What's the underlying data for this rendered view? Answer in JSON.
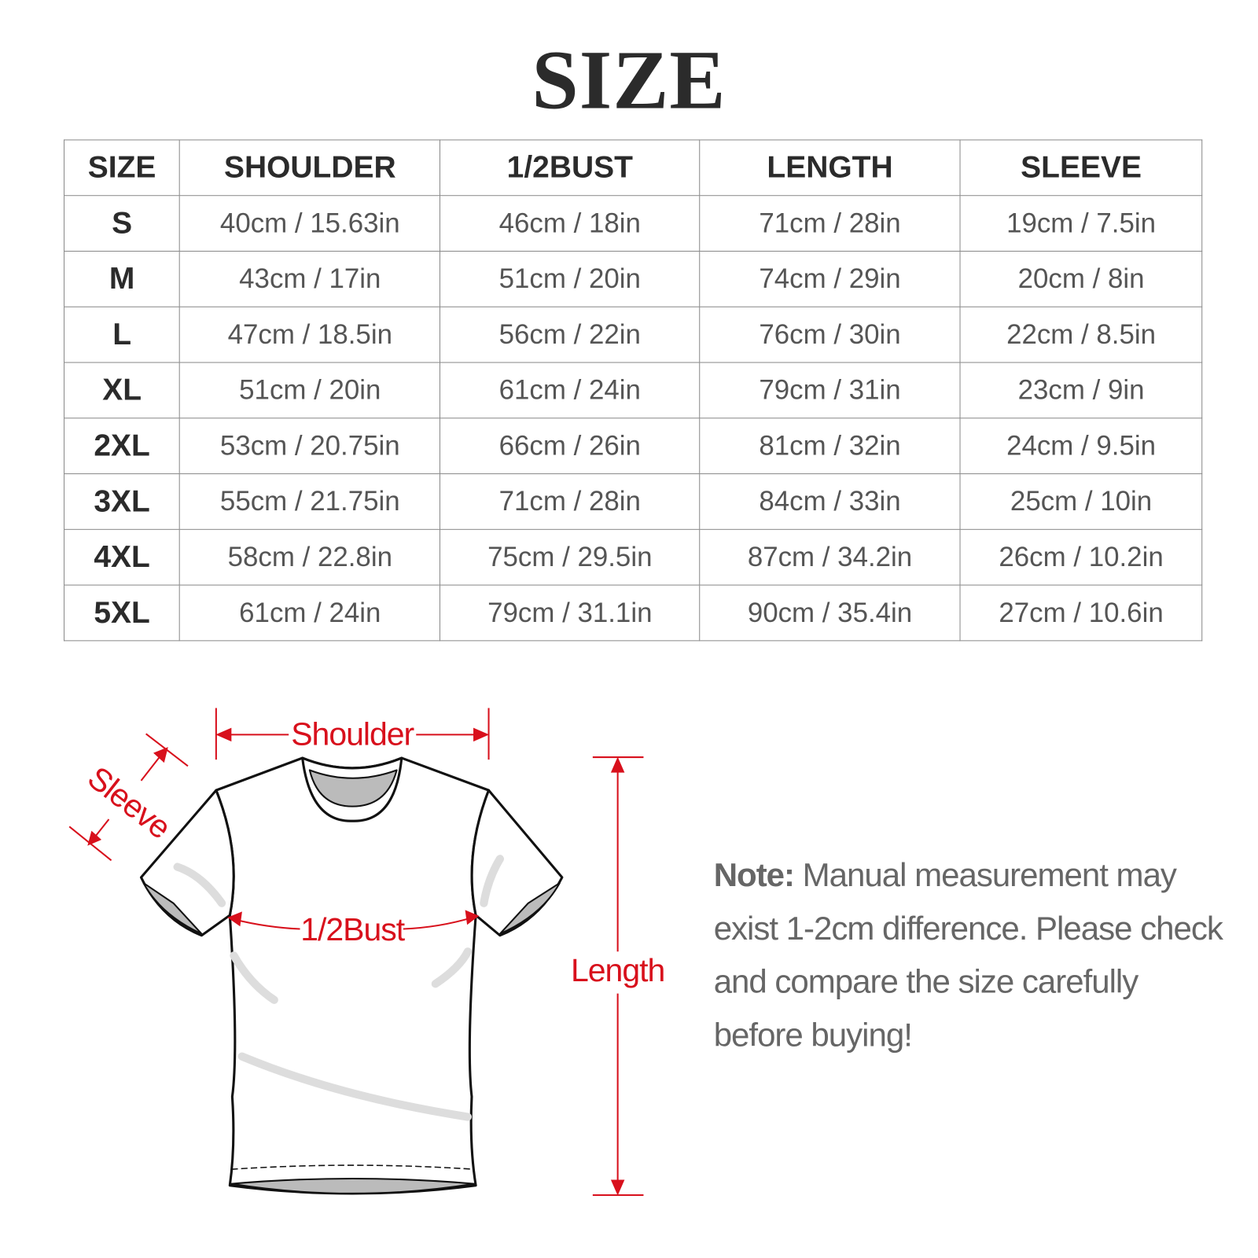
{
  "title": "SIZE",
  "table": {
    "headers": [
      "SIZE",
      "SHOULDER",
      "1/2BUST",
      "LENGTH",
      "SLEEVE"
    ],
    "rows": [
      [
        "S",
        "40cm / 15.63in",
        "46cm / 18in",
        "71cm / 28in",
        "19cm / 7.5in"
      ],
      [
        "M",
        "43cm / 17in",
        "51cm / 20in",
        "74cm / 29in",
        "20cm / 8in"
      ],
      [
        "L",
        "47cm / 18.5in",
        "56cm / 22in",
        "76cm / 30in",
        "22cm / 8.5in"
      ],
      [
        "XL",
        "51cm / 20in",
        "61cm / 24in",
        "79cm / 31in",
        "23cm / 9in"
      ],
      [
        "2XL",
        "53cm / 20.75in",
        "66cm / 26in",
        "81cm / 32in",
        "24cm / 9.5in"
      ],
      [
        "3XL",
        "55cm / 21.75in",
        "71cm / 28in",
        "84cm / 33in",
        "25cm / 10in"
      ],
      [
        "4XL",
        "58cm / 22.8in",
        "75cm / 29.5in",
        "87cm / 34.2in",
        "26cm / 10.2in"
      ],
      [
        "5XL",
        "61cm / 24in",
        "79cm / 31.1in",
        "90cm / 35.4in",
        "27cm / 10.6in"
      ]
    ]
  },
  "diagram": {
    "shoulder_label": "Shoulder",
    "sleeve_label": "Sleeve",
    "bust_label": "1/2Bust",
    "length_label": "Length",
    "accent_color": "#d8101c"
  },
  "note": {
    "label": "Note:",
    "text": " Manual measurement may exist 1-2cm difference. Please check and compare the size carefully before buying!"
  }
}
